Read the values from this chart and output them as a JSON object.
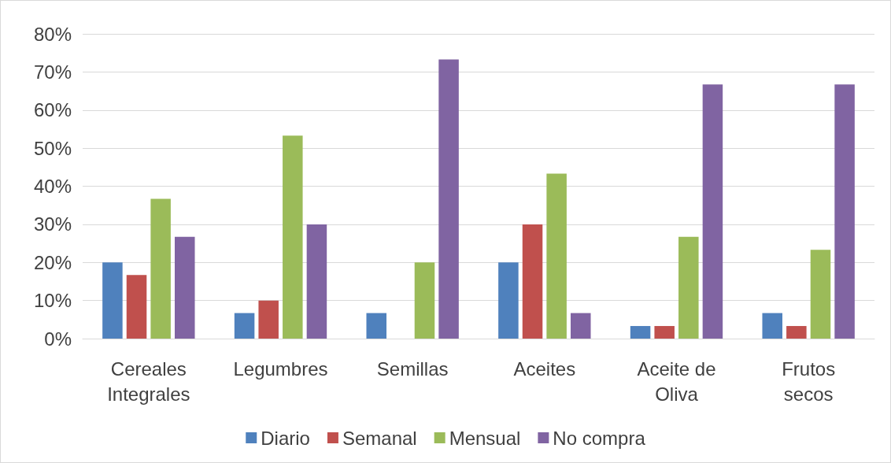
{
  "chart_data": {
    "type": "bar",
    "categories": [
      "Cereales\nIntegrales",
      "Legumbres",
      "Semillas",
      "Aceites",
      "Aceite de\nOliva",
      "Frutos\nsecos"
    ],
    "series": [
      {
        "name": "Diario",
        "color": "#4f81bd",
        "values": [
          20,
          6.7,
          6.7,
          20,
          3.3,
          6.7
        ]
      },
      {
        "name": "Semanal",
        "color": "#c0504d",
        "values": [
          16.7,
          10,
          0,
          30,
          3.3,
          3.3
        ]
      },
      {
        "name": "Mensual",
        "color": "#9bbb59",
        "values": [
          36.7,
          53.3,
          20,
          43.3,
          26.7,
          23.3
        ]
      },
      {
        "name": "No compra",
        "color": "#8064a2",
        "values": [
          26.7,
          30,
          73.3,
          6.7,
          66.7,
          66.7
        ]
      }
    ],
    "ylim": [
      0,
      80
    ],
    "yticks": [
      {
        "value": 0,
        "label": "0%"
      },
      {
        "value": 10,
        "label": "10%"
      },
      {
        "value": 20,
        "label": "20%"
      },
      {
        "value": 30,
        "label": "30%"
      },
      {
        "value": 40,
        "label": "40%"
      },
      {
        "value": 50,
        "label": "50%"
      },
      {
        "value": 60,
        "label": "60%"
      },
      {
        "value": 70,
        "label": "70%"
      },
      {
        "value": 80,
        "label": "80%"
      }
    ],
    "grid": "y",
    "legend": "bottom"
  }
}
